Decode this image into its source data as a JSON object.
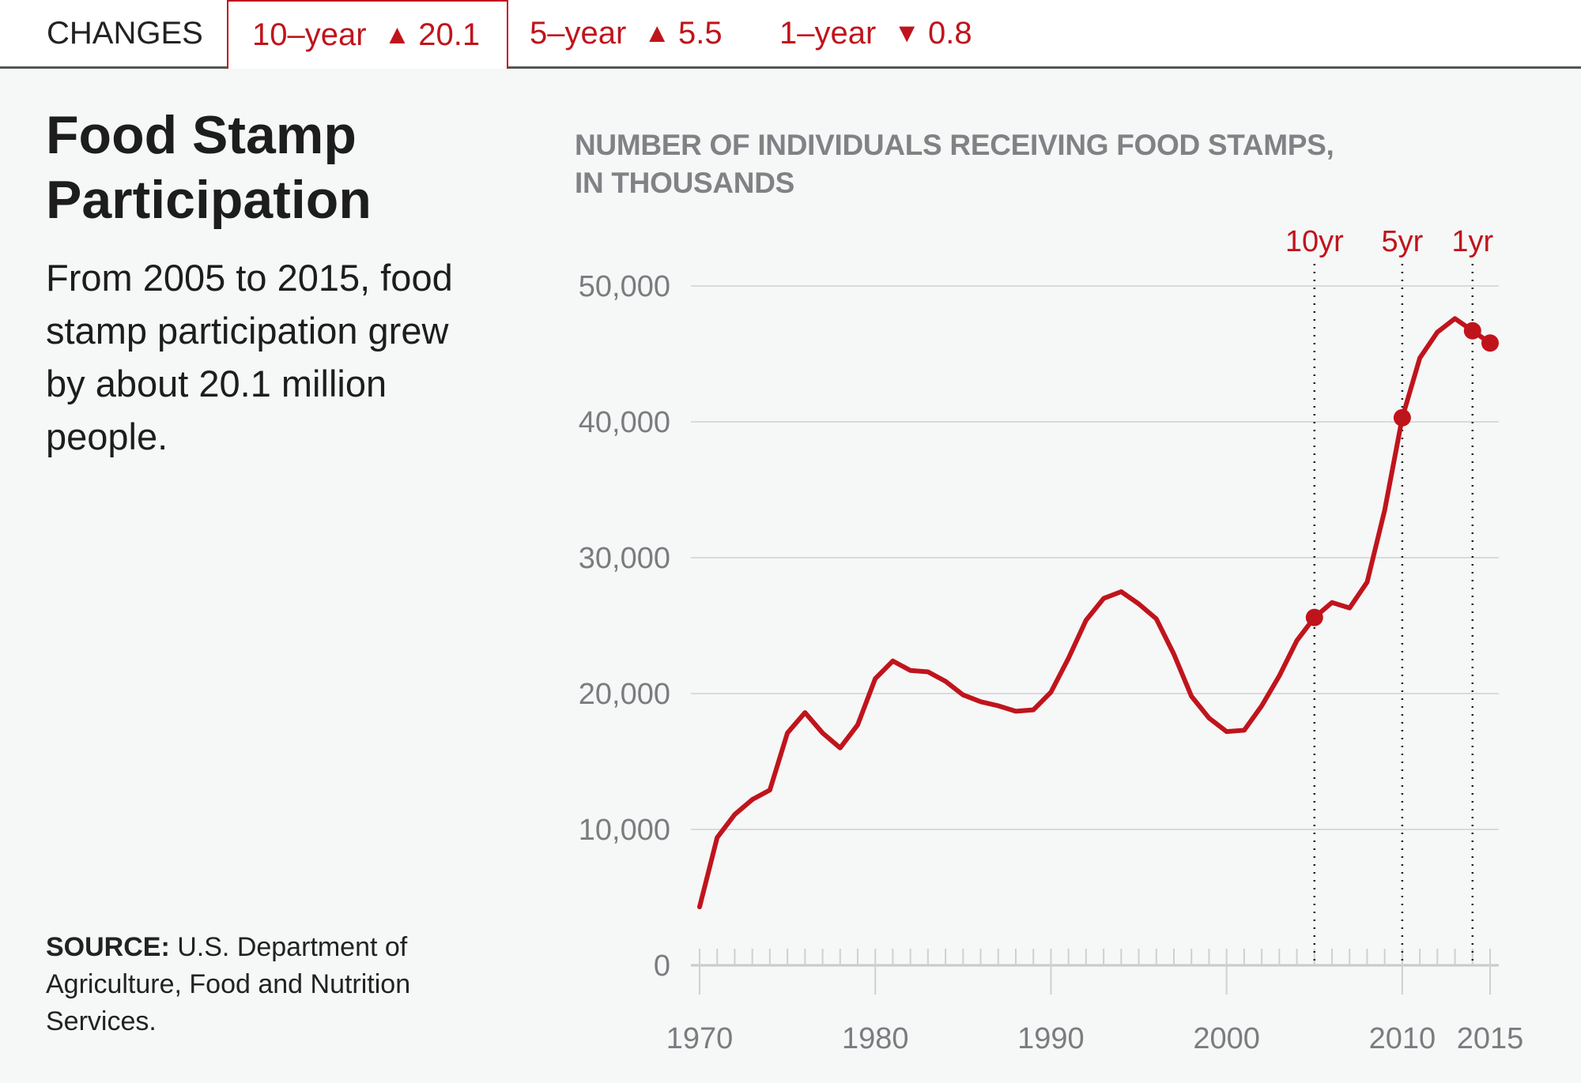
{
  "header": {
    "label": "CHANGES",
    "tabs": [
      {
        "period": "10–year",
        "direction": "up",
        "arrow": "▲",
        "value": "20.1",
        "selected": true
      },
      {
        "period": "5–year",
        "direction": "up",
        "arrow": "▲",
        "value": "5.5",
        "selected": false
      },
      {
        "period": "1–year",
        "direction": "down",
        "arrow": "▼",
        "value": "0.8",
        "selected": false
      }
    ]
  },
  "sidebar": {
    "title": "Food Stamp Participation",
    "description": "From 2005 to 2015, food stamp participation grew by about 20.1 million people.",
    "source_label": "SOURCE:",
    "source_text": " U.S. Department of Agriculture, Food and Nutrition Services."
  },
  "colors": {
    "accent": "#c0141c",
    "axis_text": "#7a7c7f",
    "gridline": "#d9dadb",
    "background": "#f6f7f7"
  },
  "chart_data": {
    "type": "line",
    "title": "NUMBER OF INDIVIDUALS RECEIVING FOOD STAMPS, IN THOUSANDS",
    "xlabel": "",
    "ylabel": "",
    "x": [
      1970,
      1971,
      1972,
      1973,
      1974,
      1975,
      1976,
      1977,
      1978,
      1979,
      1980,
      1981,
      1982,
      1983,
      1984,
      1985,
      1986,
      1987,
      1988,
      1989,
      1990,
      1991,
      1992,
      1993,
      1994,
      1995,
      1996,
      1997,
      1998,
      1999,
      2000,
      2001,
      2002,
      2003,
      2004,
      2005,
      2006,
      2007,
      2008,
      2009,
      2010,
      2011,
      2012,
      2013,
      2014,
      2015
    ],
    "series": [
      {
        "name": "Food stamp participants (thousands)",
        "values": [
          4300,
          9400,
          11100,
          12200,
          12900,
          17100,
          18600,
          17100,
          16000,
          17700,
          21100,
          22400,
          21700,
          21600,
          20900,
          19900,
          19400,
          19100,
          18700,
          18800,
          20100,
          22600,
          25400,
          27000,
          27500,
          26600,
          25500,
          22900,
          19800,
          18200,
          17200,
          17300,
          19100,
          21300,
          23900,
          25600,
          26700,
          26300,
          28200,
          33500,
          40300,
          44700,
          46600,
          47600,
          46700,
          45800
        ]
      }
    ],
    "highlighted_points": [
      2005,
      2010,
      2014,
      2015
    ],
    "markers": [
      {
        "label": "10yr",
        "year": 2005
      },
      {
        "label": "5yr",
        "year": 2010
      },
      {
        "label": "1yr",
        "year": 2014
      }
    ],
    "xlim": [
      1970,
      2015
    ],
    "ylim": [
      0,
      50000
    ],
    "x_ticks": [
      1970,
      1980,
      1990,
      2000,
      2010,
      2015
    ],
    "x_tick_labels": [
      "1970",
      "1980",
      "1990",
      "2000",
      "2010",
      "2015"
    ],
    "y_ticks": [
      0,
      10000,
      20000,
      30000,
      40000,
      50000
    ],
    "y_tick_labels": [
      "0",
      "10,000",
      "20,000",
      "30,000",
      "40,000",
      "50,000"
    ],
    "grid": true,
    "legend": "none"
  }
}
